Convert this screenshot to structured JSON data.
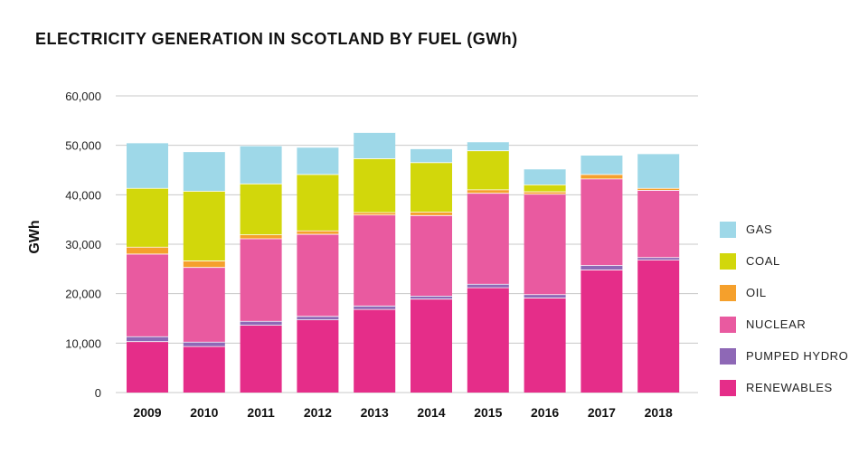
{
  "chart_data": {
    "type": "bar",
    "stacked": true,
    "title": "ELECTRICITY GENERATION IN SCOTLAND BY FUEL (GWh)",
    "xlabel": "",
    "ylabel": "GWh",
    "ylim": [
      0,
      60000
    ],
    "yticks": [
      0,
      10000,
      20000,
      30000,
      40000,
      50000,
      60000
    ],
    "ytick_labels": [
      "0",
      "10,000",
      "20,000",
      "30,000",
      "40,000",
      "50,000",
      "60,000"
    ],
    "grid": true,
    "legend_position": "right",
    "categories": [
      "2009",
      "2010",
      "2011",
      "2012",
      "2013",
      "2014",
      "2015",
      "2016",
      "2017",
      "2018"
    ],
    "series": [
      {
        "name": "RENEWABLES",
        "color": "#e52d89",
        "values": [
          10300,
          9300,
          13600,
          14700,
          16800,
          18900,
          21200,
          19100,
          24800,
          26800
        ]
      },
      {
        "name": "PUMPED HYDRO",
        "color": "#8e68b6",
        "values": [
          1000,
          900,
          800,
          700,
          700,
          600,
          700,
          700,
          900,
          500
        ]
      },
      {
        "name": "NUCLEAR",
        "color": "#e95aa0",
        "values": [
          16700,
          15100,
          16700,
          16600,
          18400,
          16300,
          18400,
          20300,
          17500,
          13600
        ]
      },
      {
        "name": "OIL",
        "color": "#f5a02c",
        "values": [
          1400,
          1300,
          800,
          700,
          500,
          700,
          700,
          500,
          900,
          400
        ]
      },
      {
        "name": "COAL",
        "color": "#d2d70b",
        "values": [
          11900,
          14100,
          10300,
          11400,
          10900,
          10000,
          7900,
          1400,
          0,
          0
        ]
      },
      {
        "name": "GAS",
        "color": "#9ed8e8",
        "values": [
          9200,
          8000,
          7700,
          5500,
          5300,
          2800,
          1800,
          3200,
          3900,
          7000
        ]
      }
    ]
  },
  "legend": {
    "items": [
      {
        "label": "GAS",
        "color": "#9ed8e8"
      },
      {
        "label": "COAL",
        "color": "#d2d70b"
      },
      {
        "label": "OIL",
        "color": "#f5a02c"
      },
      {
        "label": "NUCLEAR",
        "color": "#e95aa0"
      },
      {
        "label": "PUMPED HYDRO",
        "color": "#8e68b6"
      },
      {
        "label": "RENEWABLES",
        "color": "#e52d89"
      }
    ]
  }
}
